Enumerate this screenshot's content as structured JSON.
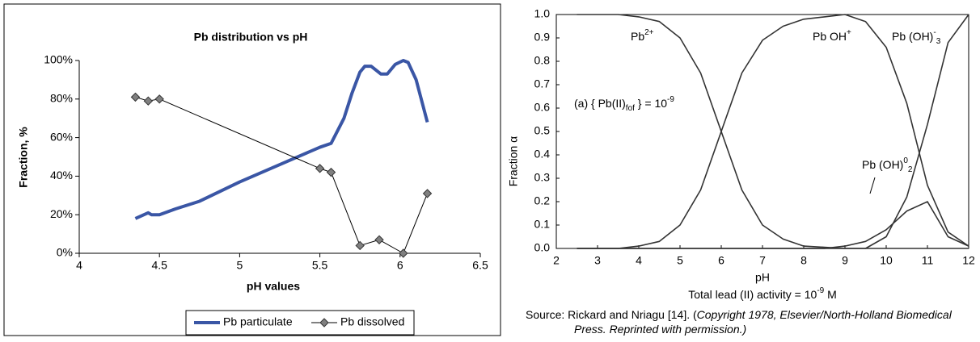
{
  "chart_data": [
    {
      "type": "line",
      "title": "Pb distribution vs pH",
      "x_label": "pH values",
      "y_label": "Fraction, %",
      "xlim": [
        4,
        6.5
      ],
      "xticks": [
        4,
        4.5,
        5,
        5.5,
        6,
        6.5
      ],
      "ylim": [
        0,
        100
      ],
      "yticks": [
        {
          "value": 0,
          "label": "0%"
        },
        {
          "value": 20,
          "label": "20%"
        },
        {
          "value": 40,
          "label": "40%"
        },
        {
          "value": 60,
          "label": "60%"
        },
        {
          "value": 80,
          "label": "80%"
        },
        {
          "value": 100,
          "label": "100%"
        }
      ],
      "legend": "bottom",
      "series": [
        {
          "name": "Pb particulate",
          "color": "#3a56a5",
          "line_width": 4,
          "marker": "none",
          "x": [
            4.35,
            4.43,
            4.45,
            4.5,
            4.6,
            4.75,
            5,
            5.25,
            5.5,
            5.57,
            5.65,
            5.7,
            5.75,
            5.78,
            5.82,
            5.88,
            5.92,
            5.97,
            6.02,
            6.05,
            6.1,
            6.17
          ],
          "values": [
            18,
            21,
            20,
            20,
            23,
            27,
            37,
            46,
            55,
            57,
            70,
            83,
            94,
            97,
            97,
            93,
            93,
            98,
            100,
            99,
            90,
            68
          ]
        },
        {
          "name": "Pb dissolved",
          "color": "#000000",
          "line_width": 1,
          "marker": "diamond",
          "marker_color": "#808080",
          "x": [
            4.35,
            4.43,
            4.5,
            5.5,
            5.57,
            5.75,
            5.87,
            6.02,
            6.17
          ],
          "values": [
            81,
            79,
            80,
            44,
            42,
            4,
            7,
            0,
            31
          ]
        }
      ]
    },
    {
      "type": "line",
      "x_label": "pH",
      "y_label": "Fraction  α",
      "xlim": [
        2,
        12
      ],
      "xticks": [
        2,
        3,
        4,
        5,
        6,
        7,
        8,
        9,
        10,
        11,
        12
      ],
      "ylim": [
        0,
        1
      ],
      "yticks": [
        {
          "value": 0,
          "label": "0.0"
        },
        0.1,
        0.2,
        0.3,
        0.4,
        0.5,
        0.6,
        0.7,
        0.8,
        0.9,
        {
          "value": 1,
          "label": "1.0"
        }
      ],
      "series": [
        {
          "name_parts": [
            {
              "text": "Pb"
            },
            {
              "text": "2+",
              "style": "sup"
            }
          ],
          "color": "#333333",
          "x": [
            2.5,
            3,
            3.5,
            4,
            4.5,
            5,
            5.5,
            6,
            6.5,
            7,
            7.5,
            8,
            8.5,
            9,
            9.5,
            10,
            10.5,
            11,
            11.5,
            12
          ],
          "values": [
            1,
            1,
            1,
            0.99,
            0.97,
            0.9,
            0.75,
            0.5,
            0.25,
            0.1,
            0.04,
            0.01,
            0.005,
            0,
            0,
            0,
            0,
            0,
            0,
            0
          ]
        },
        {
          "name_parts": [
            {
              "text": "Pb OH"
            },
            {
              "text": "+",
              "style": "sup"
            }
          ],
          "color": "#333333",
          "x": [
            2.5,
            3,
            3.5,
            4,
            4.5,
            5,
            5.5,
            6,
            6.5,
            7,
            7.5,
            8,
            8.5,
            9,
            9.5,
            10,
            10.5,
            11,
            11.5,
            12
          ],
          "values": [
            0,
            0,
            0,
            0.01,
            0.03,
            0.1,
            0.25,
            0.5,
            0.75,
            0.89,
            0.95,
            0.98,
            0.99,
            1,
            0.97,
            0.86,
            0.62,
            0.27,
            0.07,
            0.01
          ]
        },
        {
          "name_parts": [
            {
              "text": "Pb (OH)"
            },
            {
              "text": "0",
              "style": "sup"
            },
            {
              "text": "2",
              "style": "sub"
            }
          ],
          "color": "#333333",
          "x": [
            2.5,
            3,
            3.5,
            4,
            4.5,
            5,
            5.5,
            6,
            6.5,
            7,
            7.5,
            8,
            8.5,
            9,
            9.5,
            10,
            10.5,
            11,
            11.5,
            12
          ],
          "values": [
            0,
            0,
            0,
            0,
            0,
            0,
            0,
            0,
            0,
            0,
            0,
            0,
            0,
            0.01,
            0.03,
            0.08,
            0.16,
            0.2,
            0.05,
            0.01
          ]
        },
        {
          "name_parts": [
            {
              "text": "Pb (OH)"
            },
            {
              "text": "-",
              "style": "sup"
            },
            {
              "text": "3",
              "style": "sub"
            }
          ],
          "color": "#333333",
          "x": [
            2.5,
            3,
            3.5,
            4,
            4.5,
            5,
            5.5,
            6,
            6.5,
            7,
            7.5,
            8,
            8.5,
            9,
            9.5,
            10,
            10.5,
            11,
            11.5,
            12
          ],
          "values": [
            0,
            0,
            0,
            0,
            0,
            0,
            0,
            0,
            0,
            0,
            0,
            0,
            0,
            0,
            0,
            0.05,
            0.22,
            0.53,
            0.88,
            1
          ]
        }
      ],
      "annotation": [
        {
          "text": "(a)   { Pb(II)"
        },
        {
          "text": "fof",
          "style": "sub"
        },
        {
          "text": " } = 10"
        },
        {
          "text": "-9",
          "style": "sup"
        }
      ],
      "caption": [
        {
          "text": "Total lead (II) activity = 10"
        },
        {
          "text": "-9",
          "style": "sup"
        },
        {
          "text": " M"
        }
      ],
      "source": [
        [
          {
            "text": "Source:  Rickard and Nriagu [14]. ("
          },
          {
            "text": "Copyright 1978, Elsevier/North-Holland Biomedical",
            "style": "italic"
          }
        ],
        [
          {
            "text": "Press.  Reprinted with permission.)",
            "style": "italic"
          }
        ]
      ]
    }
  ]
}
